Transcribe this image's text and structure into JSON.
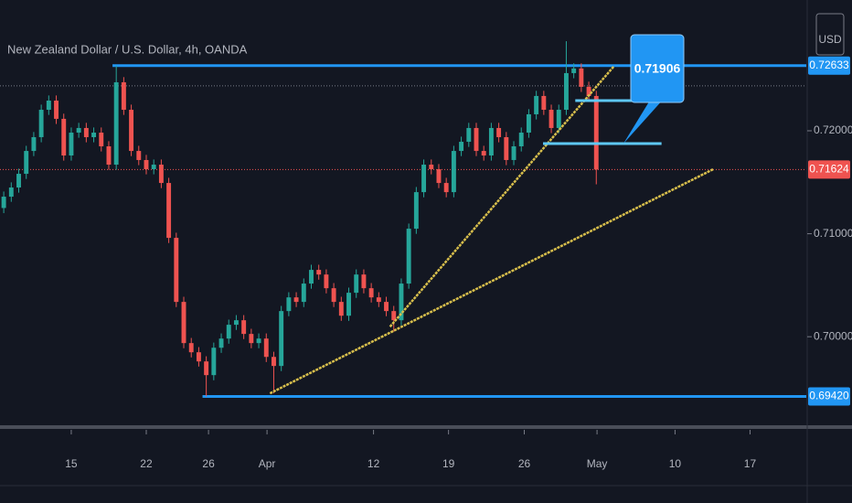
{
  "chart_data": {
    "type": "candlestick",
    "title": "New Zealand Dollar / U.S. Dollar, 4h, OANDA",
    "currency": "USD",
    "xlim": [
      0,
      107.5
    ],
    "ylim": [
      0.6914,
      0.7327
    ],
    "xticks": [
      {
        "value": 9.5,
        "label": "15"
      },
      {
        "value": 19.5,
        "label": "22"
      },
      {
        "value": 27.8,
        "label": "26"
      },
      {
        "value": 35.6,
        "label": "Apr"
      },
      {
        "value": 49.8,
        "label": "12"
      },
      {
        "value": 59.8,
        "label": "19"
      },
      {
        "value": 69.9,
        "label": "26"
      },
      {
        "value": 79.6,
        "label": "May"
      },
      {
        "value": 90,
        "label": "10"
      },
      {
        "value": 100,
        "label": "17"
      }
    ],
    "yticks": [
      {
        "value": 0.7,
        "label": "0.70000"
      },
      {
        "value": 0.71,
        "label": "0.71000"
      },
      {
        "value": 0.72,
        "label": "0.72000"
      }
    ],
    "grid": false,
    "up_color": "#26a69a",
    "down_color": "#ef5350",
    "open": [
      0.7125,
      0.7136,
      0.71449,
      0.71582,
      0.71804,
      0.71938,
      0.72204,
      0.72293,
      0.72116,
      0.7176,
      0.71982,
      0.72027,
      0.71938,
      0.71982,
      0.71849,
      0.71671,
      0.72471,
      0.72204,
      0.71804,
      0.71716,
      0.71627,
      0.71671,
      0.71493,
      0.7096,
      0.70338,
      0.69938,
      0.69849,
      0.6976,
      0.69627,
      0.69893,
      0.69982,
      0.70116,
      0.7016,
      0.70027,
      0.69938,
      0.69982,
      0.69804,
      0.69716,
      0.70249,
      0.70382,
      0.70338,
      0.70516,
      0.70649,
      0.70604,
      0.70471,
      0.70338,
      0.70204,
      0.70427,
      0.70604,
      0.70471,
      0.70382,
      0.70338,
      0.70249,
      0.7016,
      0.70516,
      0.71049,
      0.71404,
      0.71671,
      0.71627,
      0.71493,
      0.71404,
      0.71804,
      0.71893,
      0.72027,
      0.71804,
      0.7176,
      0.72027,
      0.71938,
      0.71716,
      0.71849,
      0.71982,
      0.7216,
      0.72338,
      0.72204,
      0.72027,
      0.72204,
      0.7256,
      0.72605,
      0.72427,
      0.72338
    ],
    "high": [
      0.7141,
      0.71499,
      0.71632,
      0.71854,
      0.71988,
      0.72254,
      0.72343,
      0.72343,
      0.72166,
      0.72032,
      0.72077,
      0.72077,
      0.72032,
      0.72032,
      0.71899,
      0.72633,
      0.72521,
      0.72254,
      0.71854,
      0.71766,
      0.71721,
      0.71721,
      0.71543,
      0.7101,
      0.70388,
      0.69988,
      0.69899,
      0.6981,
      0.69943,
      0.70032,
      0.70166,
      0.7021,
      0.7021,
      0.70077,
      0.70032,
      0.70032,
      0.69854,
      0.70299,
      0.70432,
      0.70432,
      0.70566,
      0.70699,
      0.70699,
      0.70654,
      0.70521,
      0.70388,
      0.70477,
      0.70654,
      0.70654,
      0.70521,
      0.70432,
      0.70388,
      0.70299,
      0.70566,
      0.71099,
      0.71454,
      0.71721,
      0.71721,
      0.71677,
      0.71543,
      0.71854,
      0.71943,
      0.72077,
      0.72077,
      0.71854,
      0.72077,
      0.72077,
      0.71988,
      0.71899,
      0.72032,
      0.7221,
      0.72388,
      0.72388,
      0.72254,
      0.72254,
      0.7287,
      0.72655,
      0.72655,
      0.72477,
      0.72388
    ],
    "low": [
      0.712,
      0.7131,
      0.71399,
      0.71532,
      0.71754,
      0.71888,
      0.72154,
      0.72066,
      0.7171,
      0.7171,
      0.71932,
      0.71888,
      0.71888,
      0.71799,
      0.71621,
      0.71621,
      0.72154,
      0.71754,
      0.71666,
      0.71577,
      0.71577,
      0.71443,
      0.7091,
      0.70288,
      0.69888,
      0.69799,
      0.6971,
      0.6942,
      0.69577,
      0.69843,
      0.69932,
      0.70066,
      0.69977,
      0.69888,
      0.69888,
      0.69754,
      0.6945,
      0.69666,
      0.70199,
      0.70288,
      0.70288,
      0.70466,
      0.70554,
      0.70421,
      0.70288,
      0.70154,
      0.70154,
      0.70377,
      0.70421,
      0.70332,
      0.70288,
      0.70199,
      0.7005,
      0.7011,
      0.70466,
      0.70999,
      0.71354,
      0.71577,
      0.71443,
      0.71354,
      0.71354,
      0.71754,
      0.71843,
      0.71754,
      0.7171,
      0.7171,
      0.71888,
      0.71666,
      0.71666,
      0.71799,
      0.71932,
      0.7211,
      0.72154,
      0.71977,
      0.71977,
      0.72154,
      0.7251,
      0.72377,
      0.72288,
      0.7148
    ],
    "close": [
      0.7136,
      0.71449,
      0.71582,
      0.71804,
      0.71938,
      0.72204,
      0.72293,
      0.72116,
      0.7176,
      0.71982,
      0.72027,
      0.71938,
      0.71982,
      0.71849,
      0.71671,
      0.72471,
      0.72204,
      0.71804,
      0.71716,
      0.71627,
      0.71671,
      0.71493,
      0.7096,
      0.70338,
      0.69938,
      0.69849,
      0.6976,
      0.69627,
      0.69893,
      0.69982,
      0.70116,
      0.7016,
      0.70027,
      0.69938,
      0.69982,
      0.69804,
      0.69716,
      0.70249,
      0.70382,
      0.70338,
      0.70516,
      0.70649,
      0.70604,
      0.70471,
      0.70338,
      0.70204,
      0.70427,
      0.70604,
      0.70471,
      0.70382,
      0.70338,
      0.70249,
      0.7016,
      0.70516,
      0.71049,
      0.71404,
      0.71671,
      0.71627,
      0.71493,
      0.71404,
      0.71804,
      0.71893,
      0.72027,
      0.71804,
      0.7176,
      0.72027,
      0.71938,
      0.71716,
      0.71849,
      0.71982,
      0.7216,
      0.72338,
      0.72204,
      0.72027,
      0.72204,
      0.7256,
      0.72605,
      0.72427,
      0.72338,
      0.71624
    ],
    "price_lines": [
      {
        "value": 0.72633,
        "label": "0.72633",
        "color": "#2196f3",
        "style": "solid",
        "start": 15
      },
      {
        "value": 0.6942,
        "label": "0.69420",
        "color": "#2196f3",
        "style": "solid",
        "start": 27
      },
      {
        "value": 0.71624,
        "label": "0.71624",
        "color": "#ef5350",
        "style": "dotted",
        "start": 0
      },
      {
        "value": 0.72436,
        "color": "#787b86",
        "style": "dotted",
        "start": 0
      }
    ],
    "segments": [
      {
        "y": [
          0.72293,
          0.72293
        ],
        "x": [
          76.7,
          88.2
        ],
        "color": "#5ec8f5"
      },
      {
        "y": [
          0.71876,
          0.71876
        ],
        "x": [
          72.4,
          88.2
        ],
        "color": "#5ec8f5"
      }
    ],
    "trendlines": [
      {
        "x": [
          36,
          95.1
        ],
        "y": [
          0.6945,
          0.71627
        ],
        "color": "#d8bf4c"
      },
      {
        "x": [
          52,
          81.8
        ],
        "y": [
          0.70097,
          0.72622
        ],
        "color": "#d8bf4c"
      }
    ],
    "callout": "0.71906"
  }
}
